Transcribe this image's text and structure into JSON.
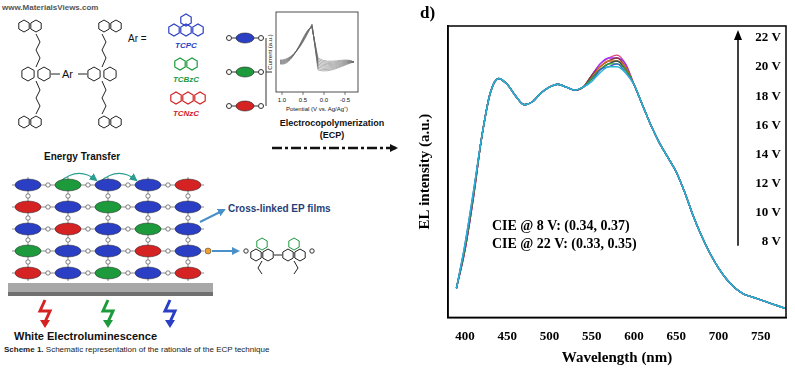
{
  "header": {
    "site": "www.MaterialsViews.com"
  },
  "scheme": {
    "structure_label": "Ar",
    "ar_prefix": "Ar =",
    "monomers": [
      {
        "name": "TCPC",
        "color": "#2b3fc4"
      },
      {
        "name": "TCBzC",
        "color": "#1d9a3c"
      },
      {
        "name": "TCNzC",
        "color": "#d52222"
      }
    ],
    "cv_inset": {
      "y_label": "Current (a.u.)",
      "x_label": "Potential (V vs. Ag/Ag⁺)",
      "x_ticks": [
        "1.0",
        "0.5",
        "0.0",
        "-0.5"
      ]
    },
    "process": [
      "Electrocopolymerization",
      "(ECP)"
    ],
    "energy_transfer": "Energy Transfer",
    "film_label": "Cross-linked EP films",
    "output": "White Electroluminescence",
    "caption": {
      "label": "Scheme 1.",
      "text": "Schematic representation of the rationale of the ECP technique"
    }
  },
  "chart_data": {
    "type": "line",
    "panel_label": "d)",
    "x_label": "Wavelength (nm)",
    "y_label": "EL intensity (a.u.)",
    "xlim": [
      380,
      780
    ],
    "xticks": [
      400,
      450,
      500,
      550,
      600,
      650,
      700,
      750
    ],
    "ylim": [
      0,
      1
    ],
    "grid": false,
    "tick_labels": "x",
    "annotations": [
      "CIE @ 8 V: (0.34, 0.37)",
      "CIE @ 22 V: (0.33, 0.35)"
    ],
    "x": [
      390,
      400,
      410,
      420,
      430,
      440,
      450,
      460,
      470,
      480,
      490,
      500,
      510,
      520,
      530,
      540,
      550,
      560,
      570,
      580,
      590,
      600,
      610,
      620,
      630,
      640,
      650,
      660,
      670,
      680,
      690,
      700,
      710,
      720,
      730,
      740,
      750,
      760,
      770,
      780
    ],
    "series": [
      {
        "name": "8 V",
        "color": "#2ab4d8",
        "values": [
          0.1,
          0.25,
          0.43,
          0.62,
          0.77,
          0.82,
          0.8,
          0.76,
          0.73,
          0.74,
          0.77,
          0.79,
          0.8,
          0.79,
          0.78,
          0.79,
          0.81,
          0.84,
          0.86,
          0.86,
          0.84,
          0.8,
          0.73,
          0.66,
          0.6,
          0.55,
          0.5,
          0.43,
          0.35,
          0.28,
          0.22,
          0.17,
          0.13,
          0.1,
          0.08,
          0.07,
          0.06,
          0.05,
          0.04,
          0.03
        ]
      },
      {
        "name": "10 V",
        "color": "#3a5fcd",
        "values": [
          0.1,
          0.25,
          0.43,
          0.62,
          0.77,
          0.82,
          0.8,
          0.76,
          0.73,
          0.74,
          0.77,
          0.79,
          0.8,
          0.79,
          0.78,
          0.79,
          0.81,
          0.85,
          0.86,
          0.87,
          0.84,
          0.8,
          0.73,
          0.66,
          0.6,
          0.55,
          0.5,
          0.43,
          0.35,
          0.28,
          0.22,
          0.17,
          0.13,
          0.1,
          0.08,
          0.07,
          0.06,
          0.05,
          0.04,
          0.03
        ]
      },
      {
        "name": "12 V",
        "color": "#2e9e3e",
        "values": [
          0.1,
          0.24,
          0.42,
          0.62,
          0.77,
          0.82,
          0.8,
          0.76,
          0.73,
          0.74,
          0.77,
          0.79,
          0.8,
          0.79,
          0.78,
          0.79,
          0.82,
          0.85,
          0.87,
          0.87,
          0.85,
          0.8,
          0.73,
          0.66,
          0.6,
          0.55,
          0.5,
          0.43,
          0.35,
          0.28,
          0.22,
          0.17,
          0.13,
          0.1,
          0.08,
          0.07,
          0.06,
          0.05,
          0.04,
          0.03
        ]
      },
      {
        "name": "14 V",
        "color": "#2f4f4f",
        "values": [
          0.1,
          0.24,
          0.42,
          0.62,
          0.77,
          0.82,
          0.8,
          0.76,
          0.73,
          0.74,
          0.77,
          0.79,
          0.8,
          0.79,
          0.78,
          0.79,
          0.82,
          0.85,
          0.87,
          0.88,
          0.85,
          0.8,
          0.73,
          0.66,
          0.6,
          0.55,
          0.5,
          0.43,
          0.35,
          0.28,
          0.22,
          0.17,
          0.13,
          0.1,
          0.08,
          0.07,
          0.06,
          0.05,
          0.04,
          0.03
        ]
      },
      {
        "name": "16 V",
        "color": "#d2691e",
        "values": [
          0.1,
          0.24,
          0.42,
          0.62,
          0.77,
          0.82,
          0.8,
          0.76,
          0.73,
          0.74,
          0.77,
          0.79,
          0.8,
          0.79,
          0.78,
          0.79,
          0.82,
          0.86,
          0.88,
          0.88,
          0.86,
          0.8,
          0.73,
          0.66,
          0.6,
          0.55,
          0.5,
          0.43,
          0.35,
          0.28,
          0.22,
          0.17,
          0.13,
          0.1,
          0.08,
          0.07,
          0.06,
          0.05,
          0.04,
          0.03
        ]
      },
      {
        "name": "18 V",
        "color": "#8b3a3a",
        "values": [
          0.1,
          0.23,
          0.41,
          0.62,
          0.77,
          0.82,
          0.8,
          0.76,
          0.73,
          0.74,
          0.77,
          0.79,
          0.8,
          0.79,
          0.78,
          0.79,
          0.83,
          0.86,
          0.88,
          0.89,
          0.86,
          0.8,
          0.73,
          0.66,
          0.6,
          0.55,
          0.5,
          0.43,
          0.35,
          0.28,
          0.22,
          0.17,
          0.13,
          0.1,
          0.08,
          0.07,
          0.06,
          0.05,
          0.04,
          0.03
        ]
      },
      {
        "name": "20 V",
        "color": "#9b30ff",
        "values": [
          0.1,
          0.23,
          0.41,
          0.62,
          0.77,
          0.82,
          0.8,
          0.76,
          0.73,
          0.74,
          0.77,
          0.79,
          0.8,
          0.79,
          0.78,
          0.79,
          0.83,
          0.87,
          0.89,
          0.89,
          0.87,
          0.8,
          0.73,
          0.66,
          0.6,
          0.55,
          0.5,
          0.43,
          0.35,
          0.28,
          0.22,
          0.17,
          0.13,
          0.1,
          0.08,
          0.07,
          0.06,
          0.05,
          0.04,
          0.03
        ]
      },
      {
        "name": "22 V",
        "color": "#e0457b",
        "values": [
          0.1,
          0.23,
          0.41,
          0.62,
          0.77,
          0.82,
          0.8,
          0.76,
          0.73,
          0.74,
          0.77,
          0.79,
          0.8,
          0.79,
          0.78,
          0.79,
          0.83,
          0.87,
          0.89,
          0.9,
          0.87,
          0.8,
          0.73,
          0.66,
          0.6,
          0.55,
          0.5,
          0.43,
          0.35,
          0.28,
          0.22,
          0.17,
          0.13,
          0.1,
          0.08,
          0.07,
          0.06,
          0.05,
          0.04,
          0.03
        ]
      }
    ]
  }
}
